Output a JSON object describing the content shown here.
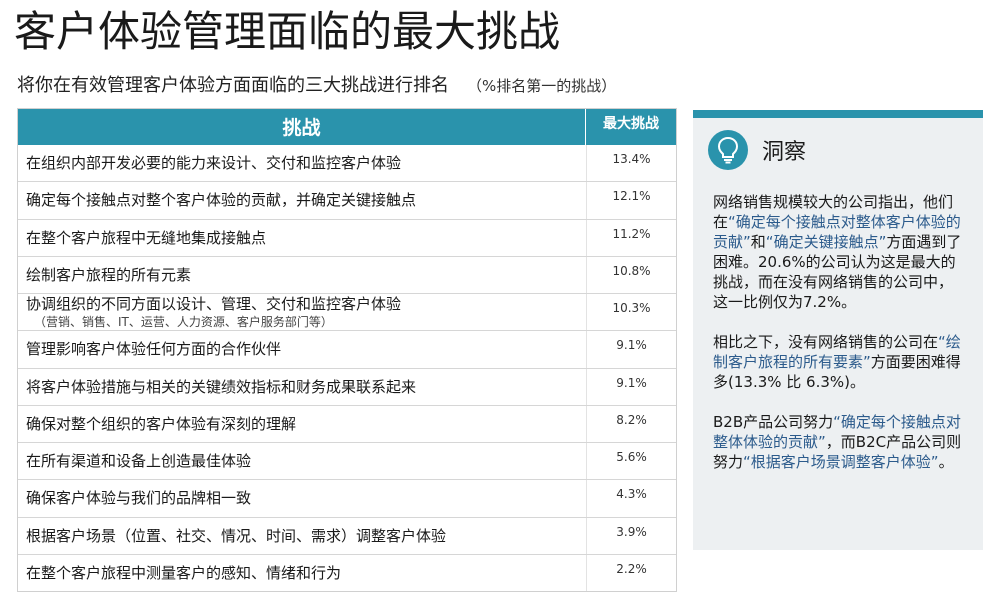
{
  "title": "客户体验管理面临的最大挑战",
  "subtitle": "将你在有效管理客户体验方面面临的三大挑战进行排名",
  "subtitle_note": "（%排名第一的挑战）",
  "colors": {
    "accent": "#2a93ac",
    "panel": "#edf0f2",
    "highlight": "#2c5b8c"
  },
  "table": {
    "header_challenge": "挑战",
    "header_value": "最大挑战"
  },
  "chart_data": {
    "type": "table",
    "columns": [
      "挑战",
      "最大挑战"
    ],
    "rows": [
      {
        "label": "在组织内部开发必要的能力来设计、交付和监控客户体验",
        "value": "13.4%"
      },
      {
        "label": "确定每个接触点对整个客户体验的贡献，并确定关键接触点",
        "value": "12.1%"
      },
      {
        "label": "在整个客户旅程中无缝地集成接触点",
        "value": "11.2%"
      },
      {
        "label": "绘制客户旅程的所有元素",
        "value": "10.8%"
      },
      {
        "label": "协调组织的不同方面以设计、管理、交付和监控客户体验",
        "sublabel": "（营销、销售、IT、运营、人力资源、客户服务部门等）",
        "value": "10.3%"
      },
      {
        "label": "管理影响客户体验任何方面的合作伙伴",
        "value": "9.1%"
      },
      {
        "label": "将客户体验措施与相关的关键绩效指标和财务成果联系起来",
        "value": "9.1%"
      },
      {
        "label": "确保对整个组织的客户体验有深刻的理解",
        "value": "8.2%"
      },
      {
        "label": "在所有渠道和设备上创造最佳体验",
        "value": "5.6%"
      },
      {
        "label": "确保客户体验与我们的品牌相一致",
        "value": "4.3%"
      },
      {
        "label": "根据客户场景（位置、社交、情况、时间、需求）调整客户体验",
        "value": "3.9%"
      },
      {
        "label": "在整个客户旅程中测量客户的感知、情绪和行为",
        "value": "2.2%"
      }
    ]
  },
  "insight": {
    "icon": "lightbulb-icon",
    "title": "洞察",
    "p1": {
      "a": "网络销售规模较大的公司指出，他们在",
      "hl1": "“确定每个接触点对整体客户体验的贡献”",
      "b": "和",
      "hl2": "“确定关键接触点”",
      "c": "方面遇到了困难。20.6%的公司认为这是最大的挑战，而在没有网络销售的公司中，这一比例仅为7.2%。"
    },
    "p2": {
      "a": "相比之下，没有网络销售的公司在",
      "hl1": "“绘制客户旅程的所有要素”",
      "b": "方面要困难得多(13.3%  比 6.3%)。"
    },
    "p3": {
      "a": "B2B产品公司努力",
      "hl1": "“确定每个接触点对整体体验的贡献”",
      "b": "，而B2C产品公司则努力",
      "hl2": "“根据客户场景调整客户体验”",
      "c": "。"
    }
  }
}
